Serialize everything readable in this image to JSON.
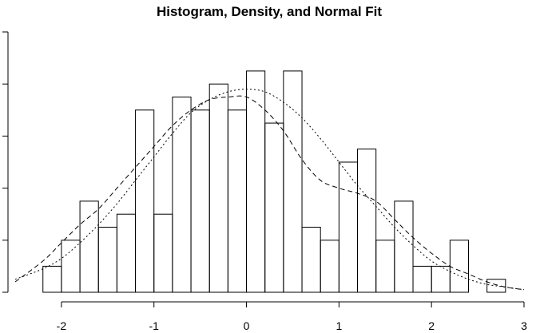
{
  "chart_data": {
    "type": "bar",
    "subtype": "histogram-with-density-and-normal-curves",
    "title": "Histogram, Density, and Normal Fit",
    "xlabel": "",
    "ylabel": "",
    "xlim": [
      -2.5,
      3.0
    ],
    "ylim": [
      0,
      1.0
    ],
    "x_ticks": [
      -2,
      -1,
      0,
      1,
      2,
      3
    ],
    "x_tick_labels": [
      "-2",
      "-1",
      "0",
      "1",
      "2",
      "3"
    ],
    "y_ticks": [
      0,
      0.2,
      0.4,
      0.6,
      0.8,
      1.0
    ],
    "y_tick_labels_visible": false,
    "grid": false,
    "legend": "none",
    "bin_width": 0.2,
    "bins": [
      {
        "start": -2.2,
        "end": -2.0,
        "height": 0.1
      },
      {
        "start": -2.0,
        "end": -1.8,
        "height": 0.2
      },
      {
        "start": -1.8,
        "end": -1.6,
        "height": 0.35
      },
      {
        "start": -1.6,
        "end": -1.4,
        "height": 0.25
      },
      {
        "start": -1.4,
        "end": -1.2,
        "height": 0.3
      },
      {
        "start": -1.2,
        "end": -1.0,
        "height": 0.7
      },
      {
        "start": -1.0,
        "end": -0.8,
        "height": 0.3
      },
      {
        "start": -0.8,
        "end": -0.6,
        "height": 0.75
      },
      {
        "start": -0.6,
        "end": -0.4,
        "height": 0.7
      },
      {
        "start": -0.4,
        "end": -0.2,
        "height": 0.8
      },
      {
        "start": -0.2,
        "end": 0.0,
        "height": 0.7
      },
      {
        "start": 0.0,
        "end": 0.2,
        "height": 0.85
      },
      {
        "start": 0.2,
        "end": 0.4,
        "height": 0.65
      },
      {
        "start": 0.4,
        "end": 0.6,
        "height": 0.85
      },
      {
        "start": 0.6,
        "end": 0.8,
        "height": 0.25
      },
      {
        "start": 0.8,
        "end": 1.0,
        "height": 0.2
      },
      {
        "start": 1.0,
        "end": 1.2,
        "height": 0.5
      },
      {
        "start": 1.2,
        "end": 1.4,
        "height": 0.55
      },
      {
        "start": 1.4,
        "end": 1.6,
        "height": 0.2
      },
      {
        "start": 1.6,
        "end": 1.8,
        "height": 0.35
      },
      {
        "start": 1.8,
        "end": 2.0,
        "height": 0.1
      },
      {
        "start": 2.0,
        "end": 2.2,
        "height": 0.1
      },
      {
        "start": 2.2,
        "end": 2.4,
        "height": 0.2
      },
      {
        "start": 2.6,
        "end": 2.8,
        "height": 0.05
      }
    ],
    "series": [
      {
        "line_style": "dashed",
        "x": [
          -2.5,
          -2.2,
          -2.0,
          -1.8,
          -1.6,
          -1.4,
          -1.2,
          -1.0,
          -0.8,
          -0.6,
          -0.4,
          -0.2,
          0.0,
          0.2,
          0.4,
          0.6,
          0.8,
          1.0,
          1.2,
          1.4,
          1.6,
          1.8,
          2.0,
          2.2,
          2.4,
          2.6,
          2.8,
          3.0
        ],
        "values": [
          0.04,
          0.12,
          0.19,
          0.26,
          0.32,
          0.4,
          0.48,
          0.56,
          0.64,
          0.7,
          0.74,
          0.75,
          0.75,
          0.7,
          0.62,
          0.51,
          0.43,
          0.4,
          0.38,
          0.35,
          0.28,
          0.21,
          0.15,
          0.1,
          0.07,
          0.04,
          0.02,
          0.01
        ]
      },
      {
        "line_style": "dotted",
        "x": [
          -2.5,
          -2.2,
          -2.0,
          -1.8,
          -1.6,
          -1.4,
          -1.2,
          -1.0,
          -0.8,
          -0.6,
          -0.4,
          -0.2,
          0.0,
          0.2,
          0.4,
          0.6,
          0.8,
          1.0,
          1.2,
          1.4,
          1.6,
          1.8,
          2.0,
          2.2,
          2.4,
          2.6,
          2.8,
          3.0
        ],
        "values": [
          0.05,
          0.09,
          0.13,
          0.19,
          0.26,
          0.34,
          0.43,
          0.52,
          0.61,
          0.69,
          0.74,
          0.77,
          0.78,
          0.77,
          0.73,
          0.67,
          0.59,
          0.5,
          0.41,
          0.33,
          0.25,
          0.18,
          0.12,
          0.08,
          0.05,
          0.03,
          0.02,
          0.01
        ]
      }
    ]
  }
}
